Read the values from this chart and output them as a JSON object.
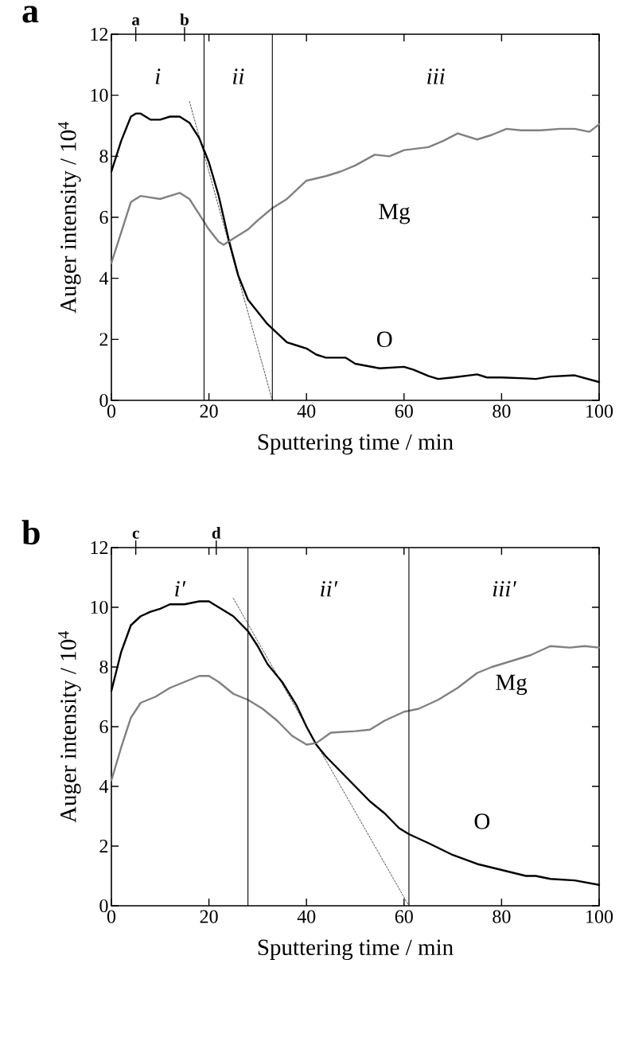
{
  "chart_data": [
    {
      "type": "line",
      "title": "a",
      "xlabel": "Sputtering time / min",
      "ylabel": "Auger intensity / 10$^{4}$",
      "xlim": [
        0,
        100
      ],
      "ylim": [
        0,
        12
      ],
      "xticks": [
        0,
        20,
        40,
        60,
        80,
        100
      ],
      "yticks": [
        0,
        2,
        4,
        6,
        8,
        10,
        12
      ],
      "series": [
        {
          "name": "O",
          "color": "#000000",
          "line_style": "solid",
          "x": [
            0,
            2,
            4,
            5,
            6,
            8,
            10,
            12,
            14,
            16,
            18,
            20,
            22,
            24,
            26,
            28,
            30,
            32,
            34,
            36,
            38,
            40,
            42,
            44,
            46,
            48,
            50,
            55,
            60,
            62,
            65,
            67,
            70,
            75,
            77,
            80,
            85,
            87,
            90,
            95,
            100
          ],
          "values": [
            7.5,
            8.5,
            9.3,
            9.4,
            9.4,
            9.2,
            9.2,
            9.3,
            9.3,
            9.1,
            8.6,
            7.8,
            6.7,
            5.3,
            4.1,
            3.3,
            2.9,
            2.5,
            2.2,
            1.9,
            1.8,
            1.7,
            1.5,
            1.4,
            1.4,
            1.4,
            1.2,
            1.05,
            1.1,
            1.0,
            0.8,
            0.7,
            0.75,
            0.85,
            0.75,
            0.75,
            0.72,
            0.7,
            0.78,
            0.82,
            0.6
          ]
        },
        {
          "name": "Mg",
          "color": "#808080",
          "line_style": "solid",
          "x": [
            0,
            2,
            4,
            6,
            8,
            10,
            12,
            14,
            16,
            18,
            20,
            22,
            23,
            25,
            28,
            30,
            33,
            36,
            40,
            44,
            47,
            50,
            54,
            57,
            60,
            65,
            68,
            71,
            75,
            78,
            81,
            84,
            88,
            92,
            95,
            98,
            100
          ],
          "values": [
            4.5,
            5.5,
            6.5,
            6.7,
            6.65,
            6.6,
            6.7,
            6.8,
            6.6,
            6.1,
            5.6,
            5.2,
            5.1,
            5.3,
            5.6,
            5.9,
            6.3,
            6.6,
            7.2,
            7.35,
            7.5,
            7.7,
            8.05,
            8.0,
            8.2,
            8.3,
            8.5,
            8.75,
            8.55,
            8.7,
            8.9,
            8.85,
            8.85,
            8.9,
            8.9,
            8.8,
            9.05
          ]
        },
        {
          "type": "line",
          "color": "#000000",
          "line_style": "dashed",
          "x": [
            16,
            33
          ],
          "values": [
            9.8,
            0
          ]
        }
      ],
      "ref_lines": [
        {
          "axis": "x",
          "value": 19
        },
        {
          "axis": "x",
          "value": 33
        },
        {
          "axis": "x",
          "value": 5,
          "label": "a"
        },
        {
          "axis": "x",
          "value": 15,
          "label": "b"
        }
      ],
      "annotations": [
        "i",
        "ii",
        "iii"
      ]
    },
    {
      "type": "line",
      "title": "b",
      "xlabel": "Sputtering time / min",
      "ylabel": "Auger intensity / 10$^{4}$",
      "xlim": [
        0,
        100
      ],
      "ylim": [
        0,
        12
      ],
      "xticks": [
        0,
        20,
        40,
        60,
        80,
        100
      ],
      "yticks": [
        0,
        2,
        4,
        6,
        8,
        10,
        12
      ],
      "series": [
        {
          "name": "O",
          "color": "#000000",
          "line_style": "solid",
          "x": [
            0,
            2,
            4,
            6,
            8,
            10,
            12,
            15,
            18,
            20,
            22,
            25,
            28,
            30,
            32,
            35,
            38,
            40,
            42,
            44,
            47,
            50,
            53,
            56,
            59,
            61,
            65,
            70,
            75,
            80,
            85,
            87,
            90,
            95,
            100
          ],
          "values": [
            7.2,
            8.5,
            9.4,
            9.7,
            9.85,
            9.95,
            10.1,
            10.1,
            10.2,
            10.2,
            10.0,
            9.7,
            9.2,
            8.7,
            8.1,
            7.5,
            6.7,
            6.0,
            5.4,
            5.0,
            4.5,
            4.0,
            3.5,
            3.1,
            2.6,
            2.4,
            2.1,
            1.7,
            1.4,
            1.2,
            1.0,
            1.0,
            0.9,
            0.85,
            0.7
          ]
        },
        {
          "name": "Mg",
          "color": "#808080",
          "line_style": "solid",
          "x": [
            0,
            2,
            4,
            6,
            9,
            12,
            15,
            18,
            20,
            22,
            25,
            28,
            31,
            34,
            37,
            40,
            42,
            45,
            50,
            53,
            56,
            60,
            63,
            67,
            71,
            75,
            78,
            82,
            86,
            90,
            94,
            97,
            100
          ],
          "values": [
            4.2,
            5.3,
            6.3,
            6.8,
            7.0,
            7.3,
            7.5,
            7.7,
            7.7,
            7.5,
            7.1,
            6.9,
            6.6,
            6.2,
            5.7,
            5.4,
            5.45,
            5.8,
            5.85,
            5.9,
            6.2,
            6.5,
            6.6,
            6.9,
            7.3,
            7.8,
            8.0,
            8.2,
            8.4,
            8.7,
            8.65,
            8.7,
            8.65
          ]
        },
        {
          "type": "line",
          "color": "#000000",
          "line_style": "dashed",
          "x": [
            25,
            61
          ],
          "values": [
            10.3,
            0
          ]
        }
      ],
      "ref_lines": [
        {
          "axis": "x",
          "value": 28
        },
        {
          "axis": "x",
          "value": 61
        },
        {
          "axis": "x",
          "value": 5,
          "label": "c"
        },
        {
          "axis": "x",
          "value": 21.5,
          "label": "d"
        }
      ],
      "annotations": [
        "i′",
        "ii′",
        "iii′"
      ]
    }
  ]
}
